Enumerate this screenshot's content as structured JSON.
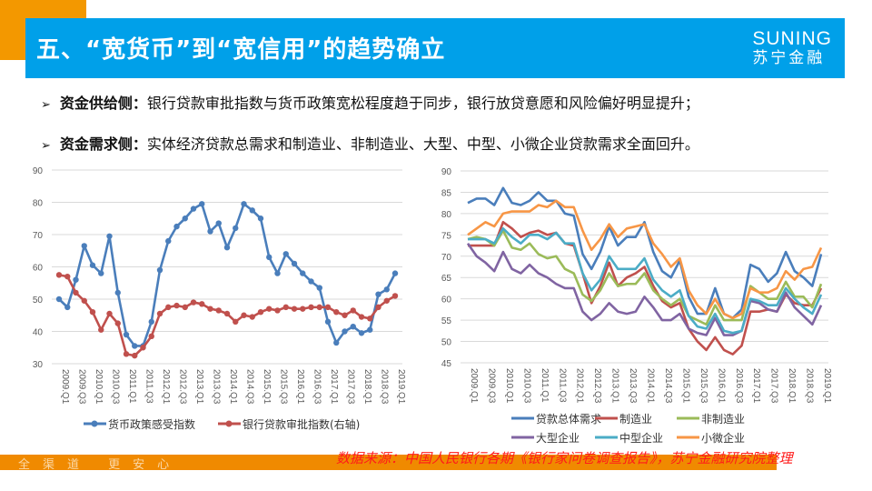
{
  "header": {
    "title": "五、“宽货币”到“宽信用”的趋势确立",
    "logo_en": "SUNING",
    "logo_cn": "苏宁金融"
  },
  "bullets": [
    {
      "label": "资金供给侧：",
      "text": "银行贷款审批指数与货币政策宽松程度趋于同步，银行放贷意愿和风险偏好明显提升；"
    },
    {
      "label": "资金需求侧：",
      "text": "实体经济贷款总需求和制造业、非制造业、大型、中型、小微企业贷款需求全面回升。"
    }
  ],
  "footer": {
    "source": "数据来源：中国人民银行各期《银行家问卷调查报告》，苏宁金融研究院整理",
    "slogan": "全渠道 更安心"
  },
  "colors": {
    "header": "#00a0e9",
    "accent": "#f39800"
  },
  "chart_data": [
    {
      "type": "line",
      "ylim": [
        30,
        90
      ],
      "yticks": [
        30,
        40,
        50,
        60,
        70,
        80,
        90
      ],
      "grid": true,
      "legend": "bottom",
      "xticks": [
        "2009.Q1",
        "2009.Q3",
        "2010.Q1",
        "2010.Q3",
        "2011.Q1",
        "2011.Q3",
        "2012.Q1",
        "2012.Q3",
        "2013.Q1",
        "2013.Q3",
        "2014.Q1",
        "2014.Q3",
        "2015.Q1",
        "2015.Q3",
        "2016.Q1",
        "2016.Q3",
        "2017.Q1",
        "2017.Q3",
        "2018.Q1",
        "2018.Q3",
        "2019.Q1"
      ],
      "series": [
        {
          "name": "货币政策感受指数",
          "color": "#4a7ebb",
          "marker": true,
          "values": [
            50,
            47.5,
            56,
            66.5,
            60.5,
            58,
            69.5,
            52,
            39,
            35.5,
            35.5,
            43,
            59,
            68,
            72.5,
            75,
            78,
            79.5,
            71,
            73.5,
            66,
            72,
            79.5,
            77.5,
            75,
            63,
            58,
            64,
            61,
            58,
            55.5,
            53.5,
            43,
            36.5,
            40,
            41.5,
            39.5,
            40.5,
            51.5,
            53,
            58
          ]
        },
        {
          "name": "银行贷款审批指数(右轴)",
          "color": "#c0504d",
          "marker": true,
          "values": [
            57.5,
            57,
            52,
            49.5,
            46,
            40.5,
            45.5,
            42.5,
            33,
            32.5,
            35,
            38.5,
            45.5,
            47.5,
            48,
            47.5,
            49,
            48.5,
            47,
            46.5,
            45.5,
            43,
            45,
            44.5,
            46,
            47,
            46.5,
            47.5,
            47,
            47,
            47.5,
            47.5,
            47.5,
            46,
            45,
            46.5,
            44.5,
            44,
            47.5,
            49.5,
            51
          ]
        }
      ]
    },
    {
      "type": "line",
      "ylim": [
        45,
        90
      ],
      "yticks": [
        45,
        50,
        55,
        60,
        65,
        70,
        75,
        80,
        85,
        90
      ],
      "grid": true,
      "legend": "bottom",
      "xticks": [
        "2009.Q1",
        "2009.Q3",
        "2010.Q1",
        "2010.Q3",
        "2011.Q1",
        "2011.Q3",
        "2012.Q1",
        "2012.Q3",
        "2013.Q1",
        "2013.Q3",
        "2014.Q1",
        "2014.Q3",
        "2015.Q1",
        "2015.Q3",
        "2016.Q1",
        "2016.Q3",
        "2017.Q1",
        "2017.Q3",
        "2018.Q1",
        "2018.Q3",
        "2019.Q1"
      ],
      "series": [
        {
          "name": "贷款总体需求",
          "color": "#4a7ebb",
          "values": [
            82.5,
            83.5,
            83.5,
            82,
            86,
            82.5,
            82,
            83,
            85,
            83,
            83,
            80,
            79.5,
            70.5,
            67,
            71,
            77,
            72.5,
            74.5,
            74.5,
            78,
            71,
            66.5,
            65,
            69,
            60.5,
            56.5,
            56.5,
            62.5,
            56.5,
            55.5,
            57.5,
            68,
            67,
            64,
            66,
            71,
            66.5,
            65,
            63,
            70.5
          ]
        },
        {
          "name": "制造业",
          "color": "#c0504d",
          "values": [
            72.5,
            72.5,
            72.5,
            72.5,
            78,
            76.5,
            74.5,
            75.5,
            76,
            75,
            75.5,
            73,
            72.5,
            66,
            59,
            63,
            68.5,
            63,
            65,
            66,
            67.5,
            63,
            59.5,
            58,
            59,
            53,
            50,
            48,
            51,
            48,
            47,
            49,
            57,
            57,
            57.5,
            57,
            61,
            59,
            58.5,
            58.5,
            62.5
          ]
        },
        {
          "name": "非制造业",
          "color": "#9bbb59",
          "values": [
            74,
            74.5,
            74,
            72.5,
            76,
            72,
            71.5,
            73,
            70.5,
            69.5,
            70,
            67,
            66,
            61,
            59.5,
            62,
            66,
            63,
            63.5,
            63.5,
            66,
            62,
            60,
            58.5,
            60,
            56,
            55,
            54,
            58.5,
            55,
            55,
            55,
            63,
            61.5,
            60,
            60,
            64,
            60.5,
            60.5,
            58,
            63.5
          ]
        },
        {
          "name": "大型企业",
          "color": "#8064a2",
          "values": [
            73,
            70,
            68.5,
            66.5,
            71,
            67,
            66,
            68,
            66,
            65,
            63.5,
            62.5,
            62.5,
            57,
            55,
            56.5,
            59,
            57,
            56.5,
            57,
            60.5,
            58,
            55,
            55,
            56.5,
            53,
            52,
            51.5,
            55.5,
            51.5,
            51.5,
            52.5,
            59.5,
            59,
            57.5,
            57,
            61.5,
            58,
            56,
            54,
            58.5
          ]
        },
        {
          "name": "中型企业",
          "color": "#4bacc6",
          "values": [
            74,
            74,
            74,
            73,
            76.5,
            74.5,
            73,
            75,
            75,
            74,
            75.5,
            73,
            73,
            66,
            62,
            64.5,
            70,
            67,
            67,
            67,
            69.5,
            64.5,
            62,
            60.5,
            62,
            56,
            53.5,
            53,
            56.5,
            52.5,
            52,
            52.5,
            60,
            59.5,
            58.5,
            58.5,
            62.5,
            60,
            58,
            56.5,
            61
          ]
        },
        {
          "name": "小微企业",
          "color": "#f79646",
          "values": [
            75,
            76.5,
            78,
            77,
            80,
            80.5,
            80.5,
            80.5,
            82,
            81.5,
            83,
            81.5,
            81.5,
            76,
            71.5,
            74,
            77.5,
            74.5,
            76.5,
            77,
            77.5,
            73,
            70.5,
            67.5,
            69.5,
            62,
            58.5,
            56.5,
            60,
            56.5,
            55.5,
            56.5,
            62.5,
            61.5,
            61.5,
            62.5,
            66.5,
            64.5,
            67,
            67.5,
            72
          ]
        }
      ]
    }
  ]
}
